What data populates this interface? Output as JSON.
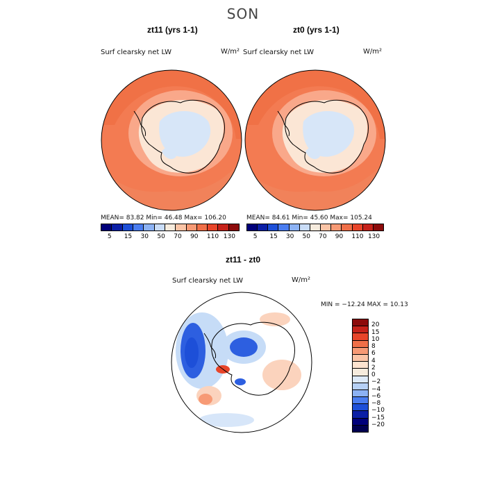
{
  "season": "SON",
  "panels": [
    {
      "title": "zt11 (yrs 1-1)",
      "label": "Surf clearsky net LW",
      "units": "W/m²",
      "stats": "MEAN=   83.82   Min=   46.48   Max=  106.20"
    },
    {
      "title": "zt0 (yrs 1-1)",
      "label": "Surf clearsky net LW",
      "units": "W/m²",
      "stats": "MEAN=   84.61   Min=   45.60   Max=  105.24"
    }
  ],
  "diff": {
    "title": "zt11 - zt0",
    "label": "Surf clearsky net LW",
    "units": "W/m²",
    "stats": "MIN = −12.24  MAX =   10.13"
  },
  "colorbar_top": {
    "ticks": [
      "5",
      "15",
      "30",
      "50",
      "70",
      "90",
      "110",
      "130"
    ],
    "colors": [
      "#00007a",
      "#0b1fa6",
      "#1d4fd8",
      "#4a7df0",
      "#8cb2f4",
      "#c9dcf7",
      "#f6ebdd",
      "#fbc4a6",
      "#f79a75",
      "#f06f48",
      "#e8452a",
      "#c6221a",
      "#8c0b0b"
    ]
  },
  "colorbar_diff": {
    "ticks": [
      "20",
      "15",
      "10",
      "8",
      "6",
      "4",
      "2",
      "0",
      "−2",
      "−4",
      "−6",
      "−8",
      "−10",
      "−15",
      "−20"
    ],
    "colors": [
      "#8c0b0b",
      "#c6221a",
      "#e8452a",
      "#f06f48",
      "#f79a75",
      "#fbc4a6",
      "#fde3cf",
      "#f6ebdd",
      "#dde9f8",
      "#b6d0f5",
      "#8cb2f4",
      "#4a7df0",
      "#1d4fd8",
      "#0b1fa6",
      "#00007a",
      "#000050"
    ]
  },
  "map_colors": {
    "ocean": "#f37b52",
    "ocean_warm": "#ef6a3f",
    "coast": "#f9a88a",
    "ice": "#fbe6d5",
    "interior": "#d7e6f8"
  },
  "diff_colors": {
    "neutral": "#ffffff",
    "pos": "#fbd3bd",
    "pos_strong": "#e8452a",
    "neg": "#c6dcf7",
    "neg_strong": "#2d5fe0"
  }
}
